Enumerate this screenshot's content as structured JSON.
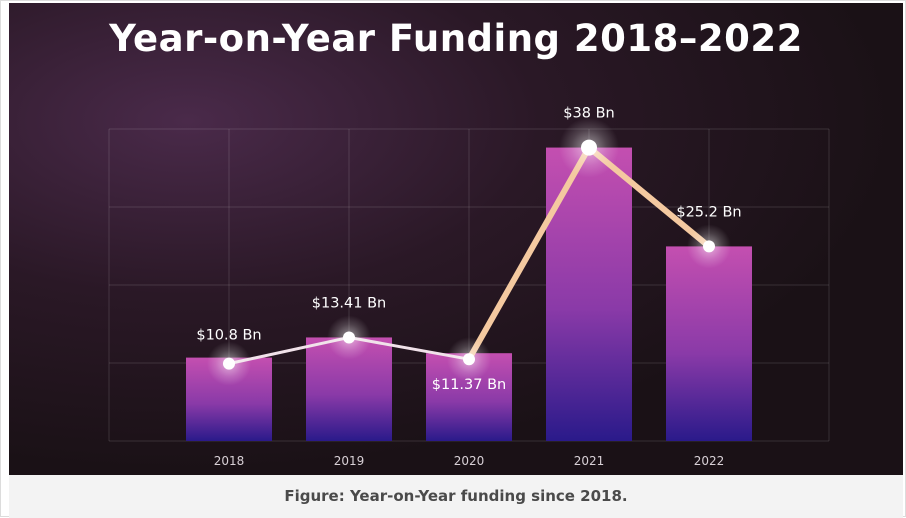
{
  "figure": {
    "title": "Year-on-Year Funding 2018–2022",
    "caption": "Figure: Year-on-Year funding since 2018."
  },
  "chart_data": {
    "type": "bar",
    "title": "Year-on-Year Funding 2018–2022",
    "categories": [
      "2018",
      "2019",
      "2020",
      "2021",
      "2022"
    ],
    "values": [
      10.8,
      13.41,
      11.37,
      38,
      25.2
    ],
    "data_labels": [
      "$10.8 Bn",
      "$13.41 Bn",
      "$11.37 Bn",
      "$38 Bn",
      "$25.2 Bn"
    ],
    "overlay_line": true,
    "ylim": [
      0,
      40
    ],
    "grid": true,
    "colors": {
      "bar_top": "#c44fb0",
      "bar_bottom": "#2a1a8a",
      "line": "#f4c9a0",
      "marker": "#ffffff"
    }
  }
}
